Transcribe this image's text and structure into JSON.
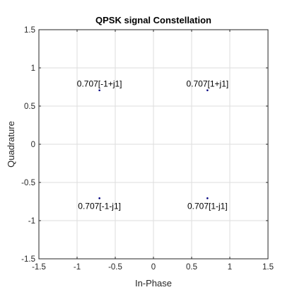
{
  "chart_data": {
    "type": "scatter",
    "title": "QPSK signal Constellation",
    "xlabel": "In-Phase",
    "ylabel": "Quadrature",
    "xlim": [
      -1.5,
      1.5
    ],
    "ylim": [
      -1.5,
      1.5
    ],
    "xticks": [
      "-1.5",
      "-1",
      "-0.5",
      "0",
      "0.5",
      "1",
      "1.5"
    ],
    "yticks": [
      "-1.5",
      "-1",
      "-0.5",
      "0",
      "0.5",
      "1",
      "1.5"
    ],
    "grid": true,
    "marker_color": "#00007f",
    "points": [
      {
        "x": 0.707,
        "y": 0.707,
        "label": "0.707[1+j1]"
      },
      {
        "x": -0.707,
        "y": 0.707,
        "label": "0.707[-1+j1]"
      },
      {
        "x": -0.707,
        "y": -0.707,
        "label": "0.707[-1-j1]"
      },
      {
        "x": 0.707,
        "y": -0.707,
        "label": "0.707[1-j1]"
      }
    ]
  }
}
